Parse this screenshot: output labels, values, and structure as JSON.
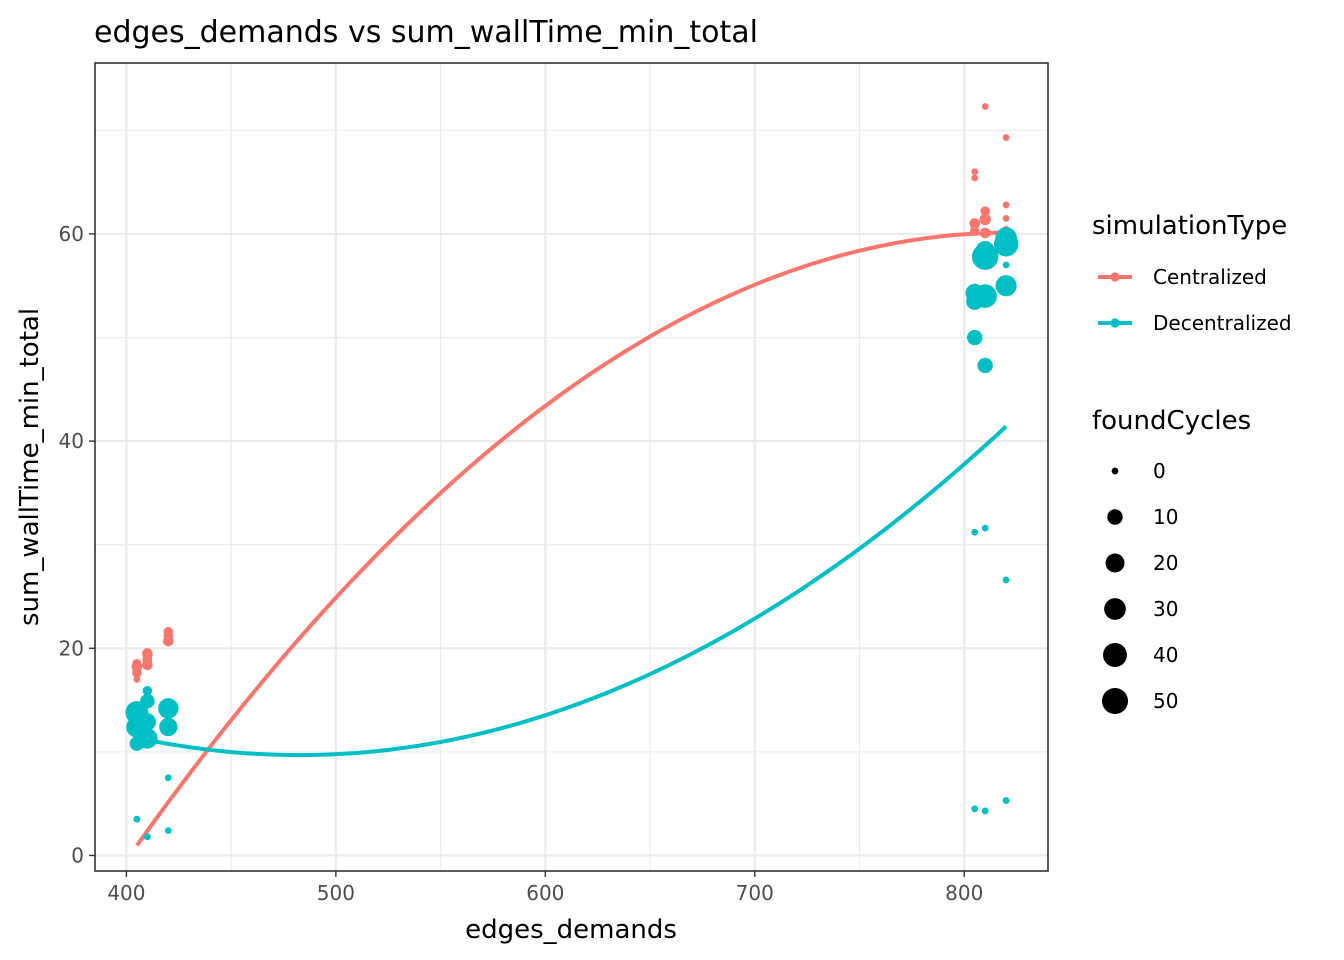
{
  "chart_data": {
    "type": "scatter",
    "title": "edges_demands  vs  sum_wallTime_min_total",
    "xlabel": "edges_demands",
    "ylabel": "sum_wallTime_min_total",
    "xlim": [
      385,
      840
    ],
    "ylim": [
      -1.5,
      76.5
    ],
    "x_ticks": [
      400,
      500,
      600,
      700,
      800
    ],
    "y_ticks": [
      0,
      20,
      40,
      60
    ],
    "x_minor": [
      450,
      550,
      650,
      750
    ],
    "y_minor": [
      10,
      30,
      50,
      70
    ],
    "grid": true,
    "legend_position": "right",
    "color_legend": {
      "title": "simulationType",
      "entries": [
        {
          "name": "Centralized",
          "color": "#F8766D"
        },
        {
          "name": "Decentralized",
          "color": "#00BFC4"
        }
      ]
    },
    "size_legend": {
      "title": "foundCycles",
      "values": [
        0,
        10,
        20,
        30,
        40,
        50
      ]
    },
    "series": [
      {
        "name": "Centralized",
        "color": "#F8766D",
        "points": [
          {
            "x": 405,
            "y": 17.0,
            "s": 0
          },
          {
            "x": 405,
            "y": 17.6,
            "s": 1
          },
          {
            "x": 405,
            "y": 18.2,
            "s": 2
          },
          {
            "x": 405,
            "y": 18.5,
            "s": 1
          },
          {
            "x": 410,
            "y": 18.4,
            "s": 2
          },
          {
            "x": 410,
            "y": 19.0,
            "s": 1
          },
          {
            "x": 410,
            "y": 19.5,
            "s": 2
          },
          {
            "x": 410,
            "y": 18.8,
            "s": 1
          },
          {
            "x": 420,
            "y": 20.7,
            "s": 2
          },
          {
            "x": 420,
            "y": 21.2,
            "s": 1
          },
          {
            "x": 420,
            "y": 21.6,
            "s": 1
          },
          {
            "x": 805,
            "y": 66.0,
            "s": 0
          },
          {
            "x": 805,
            "y": 65.4,
            "s": 0
          },
          {
            "x": 805,
            "y": 61.0,
            "s": 2
          },
          {
            "x": 805,
            "y": 60.3,
            "s": 1
          },
          {
            "x": 810,
            "y": 72.3,
            "s": 0
          },
          {
            "x": 810,
            "y": 62.2,
            "s": 1
          },
          {
            "x": 810,
            "y": 61.4,
            "s": 3
          },
          {
            "x": 810,
            "y": 60.1,
            "s": 2
          },
          {
            "x": 820,
            "y": 69.3,
            "s": 0
          },
          {
            "x": 820,
            "y": 62.8,
            "s": 0
          },
          {
            "x": 820,
            "y": 61.5,
            "s": 0
          },
          {
            "x": 820,
            "y": 60.3,
            "s": 1
          }
        ]
      },
      {
        "name": "Decentralized",
        "color": "#00BFC4",
        "points": [
          {
            "x": 405,
            "y": 3.5,
            "s": 0
          },
          {
            "x": 405,
            "y": 10.8,
            "s": 8
          },
          {
            "x": 405,
            "y": 12.4,
            "s": 28
          },
          {
            "x": 405,
            "y": 13.8,
            "s": 35
          },
          {
            "x": 410,
            "y": 1.8,
            "s": 0
          },
          {
            "x": 410,
            "y": 11.3,
            "s": 25
          },
          {
            "x": 410,
            "y": 12.9,
            "s": 15
          },
          {
            "x": 410,
            "y": 14.9,
            "s": 8
          },
          {
            "x": 410,
            "y": 15.9,
            "s": 1
          },
          {
            "x": 420,
            "y": 2.4,
            "s": 0
          },
          {
            "x": 420,
            "y": 7.5,
            "s": 0
          },
          {
            "x": 420,
            "y": 12.4,
            "s": 18
          },
          {
            "x": 420,
            "y": 14.2,
            "s": 25
          },
          {
            "x": 805,
            "y": 4.5,
            "s": 0
          },
          {
            "x": 805,
            "y": 31.2,
            "s": 0
          },
          {
            "x": 805,
            "y": 50.0,
            "s": 10
          },
          {
            "x": 805,
            "y": 53.5,
            "s": 15
          },
          {
            "x": 805,
            "y": 54.3,
            "s": 18
          },
          {
            "x": 810,
            "y": 4.3,
            "s": 0
          },
          {
            "x": 810,
            "y": 31.6,
            "s": 0
          },
          {
            "x": 810,
            "y": 47.3,
            "s": 10
          },
          {
            "x": 810,
            "y": 54.0,
            "s": 38
          },
          {
            "x": 810,
            "y": 57.8,
            "s": 52
          },
          {
            "x": 810,
            "y": 58.4,
            "s": 20
          },
          {
            "x": 820,
            "y": 5.3,
            "s": 0
          },
          {
            "x": 820,
            "y": 26.6,
            "s": 0
          },
          {
            "x": 820,
            "y": 55.0,
            "s": 28
          },
          {
            "x": 820,
            "y": 57.0,
            "s": 0
          },
          {
            "x": 820,
            "y": 59.0,
            "s": 42
          },
          {
            "x": 820,
            "y": 59.6,
            "s": 30
          }
        ]
      }
    ],
    "trend_lines": [
      {
        "name": "Centralized",
        "color": "#F8766D",
        "x_range": [
          405,
          820
        ],
        "coef": [
          -170.08,
          0.56053,
          -0.00034122
        ]
      },
      {
        "name": "Decentralized",
        "color": "#00BFC4",
        "x_range": [
          405,
          820
        ],
        "coef": [
          74.51,
          -0.26872,
          0.00027849
        ]
      }
    ]
  }
}
